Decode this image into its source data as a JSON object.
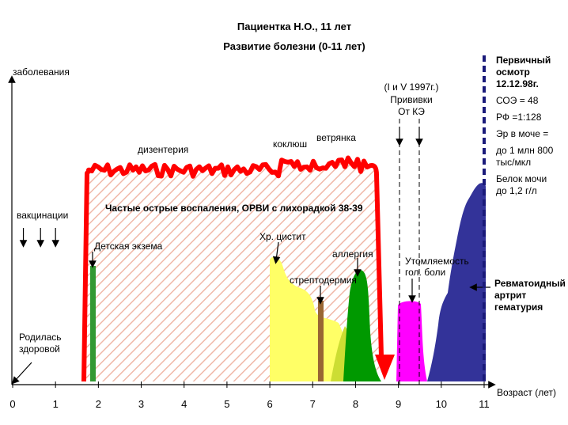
{
  "chart_data": {
    "type": "area",
    "title": "Пациентка Н.О., 11 лет",
    "subtitle": "Развитие болезни (0-11 лет)",
    "ylabel": "заболевания",
    "xlabel": "Возраст (лет)",
    "xlim": [
      0,
      11
    ],
    "x_ticks": [
      "0",
      "1",
      "2",
      "3",
      "4",
      "5",
      "6",
      "7",
      "8",
      "9",
      "10",
      "11"
    ],
    "events": {
      "birth": "Родилась здоровой",
      "vaccinations": "вакцинации",
      "vaccination_ages": [
        0.25,
        0.65,
        1.0
      ],
      "eczema": "Детская экзема",
      "dysentery": "дизентерия",
      "whooping_cough": "коклюш",
      "chickenpox": "ветрянка",
      "frequent_infections": "Частые острые воспаления, ОРВИ с лихорадкой 38-39",
      "cystitis": "Хр. цистит",
      "streptoderma": "стрептодермия",
      "allergy": "аллергия",
      "fatigue_pain": "Утомляемость гол. боли",
      "vaccine_label_1": "(I и V 1997г.)",
      "vaccine_label_2": "Прививки",
      "vaccine_label_3": "От КЭ",
      "vaccine_ages": [
        9.0,
        9.45
      ],
      "ra_label": "Ревматоидный артрит гематурия"
    },
    "exam": {
      "title": "Первичный осмотр 12.12.98г.",
      "soe": "СОЭ = 48",
      "rf": "РФ =1:128",
      "er": "Эр в моче =",
      "er_value": "до 1 млн 800 тыс/мкл",
      "protein": "Белок мочи",
      "protein_value": "до 1,2 г/л",
      "age": 11.0
    },
    "series": [
      {
        "name": "Частые острые воспаления",
        "start": 1.7,
        "end": 8.5,
        "level": 0.78,
        "color": "#ff0000"
      },
      {
        "name": "Детская экзема",
        "start": 1.85,
        "end": 1.95,
        "level": 0.48,
        "color": "#339933"
      },
      {
        "name": "Хр. цистит",
        "start": 6.0,
        "end": 7.5,
        "level": 0.53,
        "color": "#ffff66"
      },
      {
        "name": "стрептодермия",
        "start": 7.1,
        "end": 7.25,
        "level": 0.33,
        "color": "#996633"
      },
      {
        "name": "аллергия",
        "start": 7.7,
        "end": 8.4,
        "level": 0.48,
        "color": "#009900"
      },
      {
        "name": "Утомляемость гол. боли",
        "start": 9.0,
        "end": 9.65,
        "level": 0.31,
        "color": "#ff00ff"
      },
      {
        "name": "Ревматоидный артрит",
        "start": 9.65,
        "end": 11.0,
        "level": 0.7,
        "color": "#333399"
      }
    ],
    "colors": {
      "red": "#ff0000",
      "hatch": "#f0b8a8",
      "eczema": "#339933",
      "cystitis": "#ffff66",
      "cystitis_dark": "#ccdd33",
      "streptoderma": "#996633",
      "allergy": "#009900",
      "fatigue": "#ff00ff",
      "ra": "#333399",
      "exam_line": "#1a1a7a"
    }
  }
}
